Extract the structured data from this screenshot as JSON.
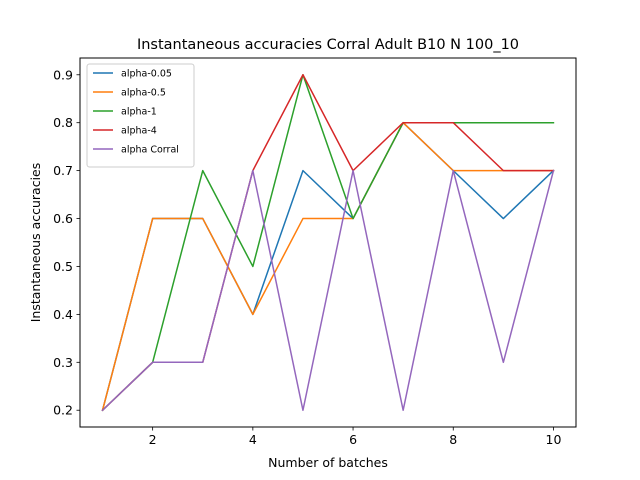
{
  "chart_data": {
    "type": "line",
    "title": "Instantaneous accuracies Corral Adult B10 N 100_10",
    "xlabel": "Number of batches",
    "ylabel": "Instantaneous accuracies",
    "x": [
      1,
      2,
      3,
      4,
      5,
      6,
      7,
      8,
      9,
      10
    ],
    "xlim": [
      0.55,
      10.45
    ],
    "ylim": [
      0.165,
      0.935
    ],
    "xticks": [
      2,
      4,
      6,
      8,
      10
    ],
    "yticks": [
      0.2,
      0.3,
      0.4,
      0.5,
      0.6,
      0.7,
      0.8,
      0.9
    ],
    "ytick_labels": [
      "0.2",
      "0.3",
      "0.4",
      "0.5",
      "0.6",
      "0.7",
      "0.8",
      "0.9"
    ],
    "grid": false,
    "legend_position": "top-left",
    "series": [
      {
        "name": "alpha-0.05",
        "color": "#1f77b4",
        "values": [
          0.2,
          0.6,
          0.6,
          0.4,
          0.7,
          0.6,
          0.8,
          0.7,
          0.6,
          0.7
        ]
      },
      {
        "name": "alpha-0.5",
        "color": "#ff7f0e",
        "values": [
          0.2,
          0.6,
          0.6,
          0.4,
          0.6,
          0.6,
          0.8,
          0.7,
          0.7,
          0.7
        ]
      },
      {
        "name": "alpha-1",
        "color": "#2ca02c",
        "values": [
          0.2,
          0.3,
          0.7,
          0.5,
          0.9,
          0.6,
          0.8,
          0.8,
          0.8,
          0.8
        ]
      },
      {
        "name": "alpha-4",
        "color": "#d62728",
        "values": [
          0.2,
          0.3,
          0.3,
          0.7,
          0.9,
          0.7,
          0.8,
          0.8,
          0.7,
          0.7
        ]
      },
      {
        "name": "alpha Corral",
        "color": "#9467bd",
        "values": [
          0.2,
          0.3,
          0.3,
          0.7,
          0.2,
          0.7,
          0.2,
          0.7,
          0.3,
          0.7
        ]
      }
    ]
  }
}
